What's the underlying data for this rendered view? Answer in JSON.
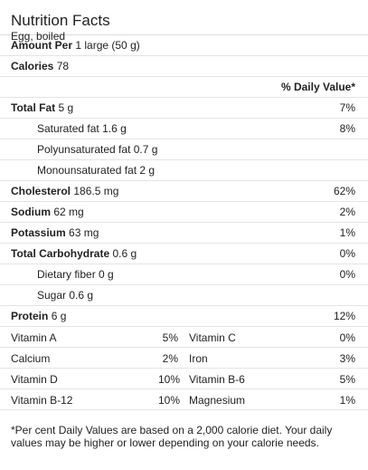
{
  "header": {
    "title": "Nutrition Facts",
    "subtitle": "Egg, boiled"
  },
  "amount_per": {
    "label": "Amount Per",
    "value": "1 large (50 g)"
  },
  "calories": {
    "label": "Calories",
    "value": "78"
  },
  "daily_value_heading": "% Daily Value*",
  "nutrients": [
    {
      "label": "Total Fat",
      "amount": "5 g",
      "pct": "7%"
    },
    {
      "label": "Saturated fat",
      "amount": "1.6 g",
      "pct": "8%"
    },
    {
      "label": "Polyunsaturated fat",
      "amount": "0.7 g",
      "pct": ""
    },
    {
      "label": "Monounsaturated fat",
      "amount": "2 g",
      "pct": ""
    },
    {
      "label": "Cholesterol",
      "amount": "186.5 mg",
      "pct": "62%"
    },
    {
      "label": "Sodium",
      "amount": "62 mg",
      "pct": "2%"
    },
    {
      "label": "Potassium",
      "amount": "63 mg",
      "pct": "1%"
    },
    {
      "label": "Total Carbohydrate",
      "amount": "0.6 g",
      "pct": "0%"
    },
    {
      "label": "Dietary fiber",
      "amount": "0 g",
      "pct": "0%"
    },
    {
      "label": "Sugar",
      "amount": "0.6 g",
      "pct": ""
    },
    {
      "label": "Protein",
      "amount": "6 g",
      "pct": "12%"
    }
  ],
  "vitamins": [
    {
      "left_name": "Vitamin A",
      "left_pct": "5%",
      "right_name": "Vitamin C",
      "right_pct": "0%"
    },
    {
      "left_name": "Calcium",
      "left_pct": "2%",
      "right_name": "Iron",
      "right_pct": "3%"
    },
    {
      "left_name": "Vitamin D",
      "left_pct": "10%",
      "right_name": "Vitamin B-6",
      "right_pct": "5%"
    },
    {
      "left_name": "Vitamin B-12",
      "left_pct": "10%",
      "right_name": "Magnesium",
      "right_pct": "1%"
    }
  ],
  "footnote": "*Per cent Daily Values are based on a 2,000 calorie diet. Your daily values may be higher or lower depending on your calorie needs."
}
